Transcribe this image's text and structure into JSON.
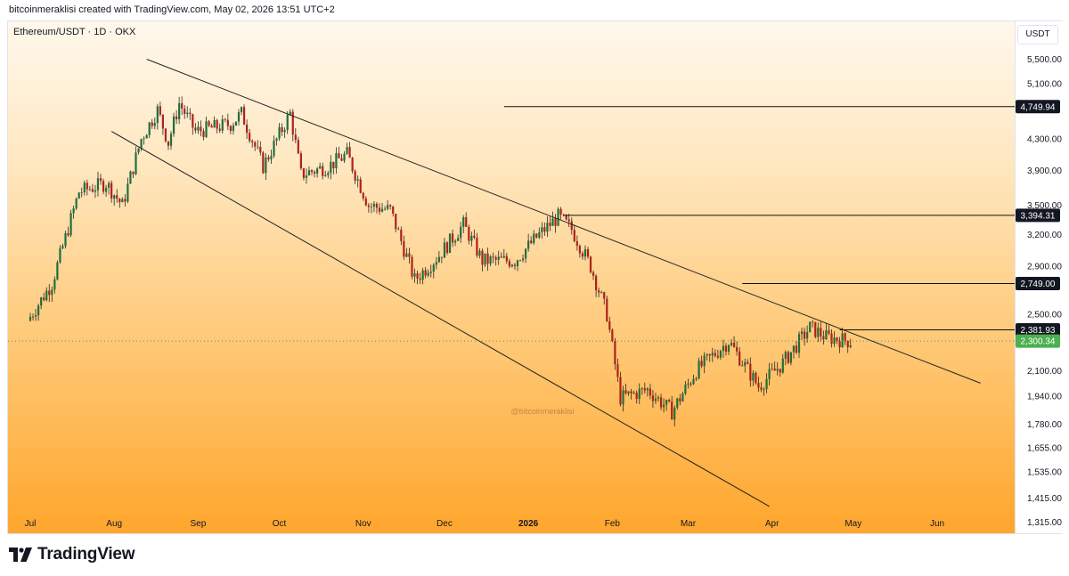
{
  "header": {
    "text": "bitcoinmeraklisi created with TradingView.com, May 02, 2026 13:51 UTC+2"
  },
  "symbol_label": "Ethereum/USDT · 1D · OKX",
  "currency": "USDT",
  "watermark": "@bitcoinmeraklisi",
  "footer": {
    "brand": "TradingView"
  },
  "colors": {
    "up": "#1e6f3d",
    "down": "#b0211a",
    "wick": "#2a2a2a",
    "last_price": "#4caf50"
  },
  "chart_data": {
    "type": "candlestick",
    "log_scale": true,
    "x_ticks": [
      {
        "label": "Jul",
        "date": "2025-07-01"
      },
      {
        "label": "Aug",
        "date": "2025-08-01"
      },
      {
        "label": "Sep",
        "date": "2025-09-01"
      },
      {
        "label": "Oct",
        "date": "2025-10-01"
      },
      {
        "label": "Nov",
        "date": "2025-11-01"
      },
      {
        "label": "Dec",
        "date": "2025-12-01"
      },
      {
        "label": "2026",
        "date": "2026-01-01"
      },
      {
        "label": "Feb",
        "date": "2026-02-01"
      },
      {
        "label": "Mar",
        "date": "2026-03-01"
      },
      {
        "label": "Apr",
        "date": "2026-04-01"
      },
      {
        "label": "May",
        "date": "2026-05-01"
      },
      {
        "label": "Jun",
        "date": "2026-06-01"
      }
    ],
    "y_ticks": [
      "5,500.00",
      "5,100.00",
      "4,300.00",
      "3,900.00",
      "3,500.00",
      "3,200.00",
      "2,900.00",
      "2,500.00",
      "2,100.00",
      "1,940.00",
      "1,780.00",
      "1,655.00",
      "1,535.00",
      "1,415.00",
      "1,315.00"
    ],
    "y_range": [
      1270,
      5900
    ],
    "horizontal_levels": [
      {
        "value": 4749.94,
        "label": "4,749.94",
        "from": "2025-12-23"
      },
      {
        "value": 3394.31,
        "label": "3,394.31",
        "from": "2026-01-14"
      },
      {
        "value": 2749.0,
        "label": "2,749.00",
        "from": "2026-03-21"
      },
      {
        "value": 2381.93,
        "label": "2,381.93",
        "from": "2026-04-26"
      }
    ],
    "last_price": {
      "value": 2300.34,
      "label": "2,300.34"
    },
    "trendlines": [
      {
        "name": "upper",
        "from": {
          "date": "2025-08-13",
          "price": 5500
        },
        "to": {
          "date": "2026-06-17",
          "price": 2020
        }
      },
      {
        "name": "lower",
        "from": {
          "date": "2025-07-31",
          "price": 4400
        },
        "to": {
          "date": "2026-03-31",
          "price": 1380
        }
      }
    ],
    "price_path": [
      {
        "date": "2025-07-01",
        "close": 2450
      },
      {
        "date": "2025-07-10",
        "close": 2750
      },
      {
        "date": "2025-07-20",
        "close": 3650
      },
      {
        "date": "2025-07-30",
        "close": 3750
      },
      {
        "date": "2025-08-05",
        "close": 3500
      },
      {
        "date": "2025-08-12",
        "close": 4300
      },
      {
        "date": "2025-08-18",
        "close": 4700
      },
      {
        "date": "2025-08-22",
        "close": 4250
      },
      {
        "date": "2025-08-26",
        "close": 4800
      },
      {
        "date": "2025-09-01",
        "close": 4400
      },
      {
        "date": "2025-09-14",
        "close": 4500
      },
      {
        "date": "2025-09-18",
        "close": 4650
      },
      {
        "date": "2025-09-26",
        "close": 3950
      },
      {
        "date": "2025-10-06",
        "close": 4650
      },
      {
        "date": "2025-10-10",
        "close": 3850
      },
      {
        "date": "2025-10-20",
        "close": 3950
      },
      {
        "date": "2025-10-27",
        "close": 4100
      },
      {
        "date": "2025-11-04",
        "close": 3500
      },
      {
        "date": "2025-11-12",
        "close": 3450
      },
      {
        "date": "2025-11-21",
        "close": 2780
      },
      {
        "date": "2025-11-30",
        "close": 3000
      },
      {
        "date": "2025-12-09",
        "close": 3300
      },
      {
        "date": "2025-12-16",
        "close": 2950
      },
      {
        "date": "2025-12-28",
        "close": 2950
      },
      {
        "date": "2026-01-06",
        "close": 3200
      },
      {
        "date": "2026-01-13",
        "close": 3380
      },
      {
        "date": "2026-01-18",
        "close": 3250
      },
      {
        "date": "2026-01-25",
        "close": 2900
      },
      {
        "date": "2026-01-31",
        "close": 2500
      },
      {
        "date": "2026-02-05",
        "close": 1930
      },
      {
        "date": "2026-02-15",
        "close": 1980
      },
      {
        "date": "2026-02-24",
        "close": 1850
      },
      {
        "date": "2026-03-05",
        "close": 2100
      },
      {
        "date": "2026-03-17",
        "close": 2300
      },
      {
        "date": "2026-03-28",
        "close": 2000
      },
      {
        "date": "2026-04-06",
        "close": 2150
      },
      {
        "date": "2026-04-16",
        "close": 2400
      },
      {
        "date": "2026-04-22",
        "close": 2330
      },
      {
        "date": "2026-05-01",
        "close": 2300
      }
    ]
  }
}
